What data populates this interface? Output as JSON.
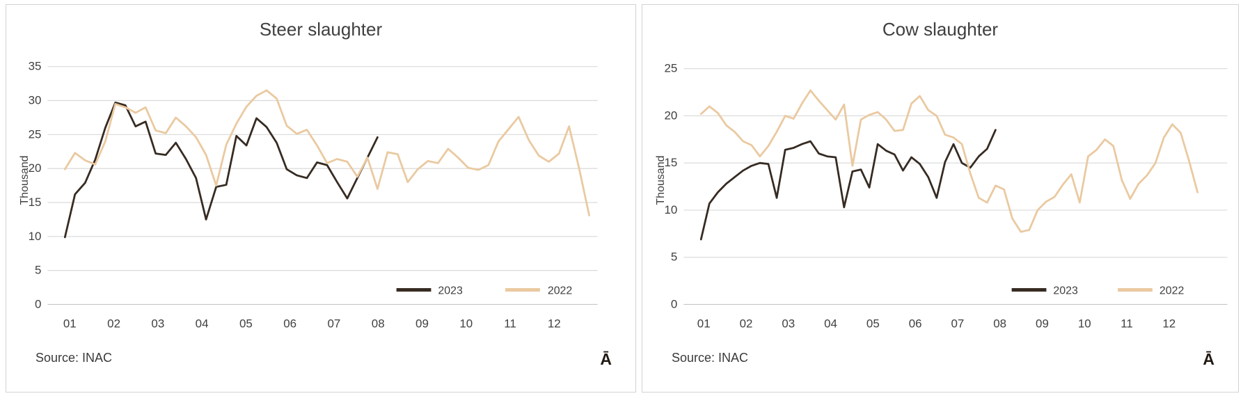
{
  "theme": {
    "background": "#ffffff",
    "panel_border": "#d2d2d2",
    "grid_color": "#d9d9d9",
    "axis_line_color": "#c6c6c6",
    "axis_text_color": "#404040",
    "title_color": "#3f3f3f",
    "legend_text_color": "#3f3f3f",
    "series_2023_color": "#362b22",
    "series_2022_color": "#eac9a0"
  },
  "chart_data": [
    {
      "id": "steer",
      "type": "line",
      "title": "Steer slaughter",
      "ylabel": "Thousand",
      "xlabel": "",
      "ylim": [
        0,
        35
      ],
      "y_ticks": [
        0,
        5,
        10,
        15,
        20,
        25,
        30,
        35
      ],
      "x_tick_labels": [
        "01",
        "02",
        "03",
        "04",
        "05",
        "06",
        "07",
        "08",
        "09",
        "10",
        "11",
        "12"
      ],
      "x_unit": "week of year",
      "grid": true,
      "legend_position": "inside-bottom-right",
      "source_note": "Source: INAC",
      "corner_glyph": "Ā",
      "series": [
        {
          "name": "2023",
          "color": "#362b22",
          "values": [
            9.9,
            16.2,
            17.9,
            21.3,
            26.0,
            29.7,
            29.3,
            26.2,
            26.9,
            22.2,
            22.0,
            23.8,
            21.4,
            18.6,
            12.5,
            17.3,
            17.6,
            24.8,
            23.4,
            27.4,
            26.1,
            23.8,
            19.9,
            19.0,
            18.6,
            20.9,
            20.5,
            18.0,
            15.6,
            18.6,
            21.6,
            24.6
          ]
        },
        {
          "name": "2022",
          "color": "#eac9a0",
          "values": [
            19.9,
            22.3,
            21.2,
            20.6,
            24.0,
            29.5,
            29.0,
            28.2,
            29.0,
            25.6,
            25.2,
            27.5,
            26.2,
            24.6,
            22.0,
            17.5,
            23.5,
            26.6,
            29.1,
            30.7,
            31.5,
            30.3,
            26.3,
            25.1,
            25.7,
            23.4,
            20.8,
            21.4,
            21.0,
            18.8,
            21.6,
            17.0,
            22.4,
            22.1,
            18.0,
            19.9,
            21.1,
            20.8,
            22.9,
            21.6,
            20.1,
            19.8,
            20.5,
            24.0,
            25.8,
            27.6,
            24.2,
            21.9,
            21.0,
            22.2,
            26.2,
            20.0,
            13.1
          ]
        }
      ]
    },
    {
      "id": "cow",
      "type": "line",
      "title": "Cow slaughter",
      "ylabel": "Thousand",
      "xlabel": "",
      "ylim": [
        0,
        25
      ],
      "y_ticks": [
        0,
        5,
        10,
        15,
        20,
        25
      ],
      "x_tick_labels": [
        "01",
        "02",
        "03",
        "04",
        "05",
        "06",
        "07",
        "08",
        "09",
        "10",
        "11",
        "12"
      ],
      "x_unit": "week of year",
      "grid": true,
      "legend_position": "inside-bottom-right",
      "source_note": "Source: INAC",
      "corner_glyph": "Ā",
      "series": [
        {
          "name": "2023",
          "color": "#362b22",
          "values": [
            6.9,
            10.7,
            11.9,
            12.8,
            13.5,
            14.2,
            14.7,
            15.0,
            14.9,
            11.3,
            16.4,
            16.6,
            17.0,
            17.3,
            16.0,
            15.7,
            15.6,
            10.3,
            14.1,
            14.3,
            12.4,
            17.0,
            16.3,
            15.9,
            14.2,
            15.6,
            14.9,
            13.5,
            11.3,
            15.1,
            17.0,
            15.0,
            14.5,
            15.7,
            16.5,
            18.5
          ]
        },
        {
          "name": "2022",
          "color": "#eac9a0",
          "values": [
            20.2,
            21.0,
            20.3,
            19.0,
            18.3,
            17.3,
            16.9,
            15.7,
            16.8,
            18.3,
            20.0,
            19.7,
            21.3,
            22.7,
            21.6,
            20.6,
            19.6,
            21.2,
            14.7,
            19.6,
            20.1,
            20.4,
            19.6,
            18.4,
            18.5,
            21.3,
            22.1,
            20.6,
            20.0,
            18.0,
            17.7,
            17.0,
            13.9,
            11.3,
            10.8,
            12.6,
            12.2,
            9.1,
            7.7,
            7.9,
            10.0,
            10.9,
            11.4,
            12.7,
            13.8,
            10.8,
            15.7,
            16.4,
            17.5,
            16.8,
            13.2,
            11.2,
            12.8,
            13.7,
            15.0,
            17.7,
            19.1,
            18.2,
            15.2,
            11.9
          ]
        }
      ]
    }
  ]
}
